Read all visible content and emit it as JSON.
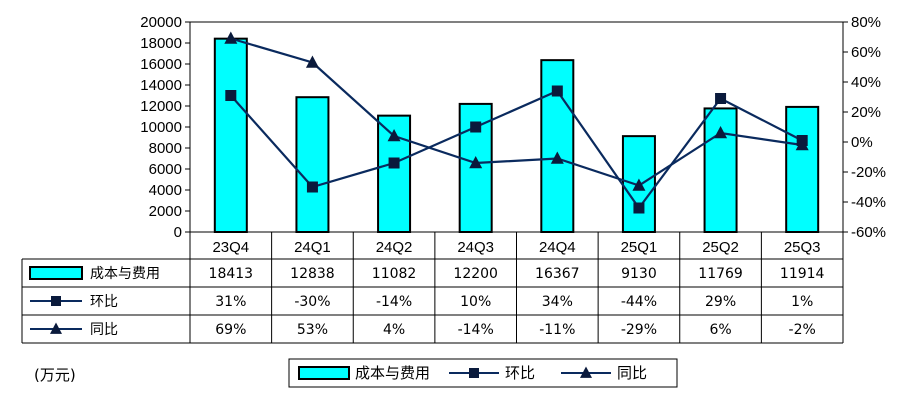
{
  "chart_data": {
    "type": "bar",
    "categories": [
      "23Q4",
      "24Q1",
      "24Q2",
      "24Q3",
      "24Q4",
      "25Q1",
      "25Q2",
      "25Q3"
    ],
    "y_left_ticks": [
      "20000",
      "18000",
      "16000",
      "14000",
      "12000",
      "10000",
      "8000",
      "6000",
      "4000",
      "2000",
      "0"
    ],
    "y_right_ticks": [
      "80%",
      "60%",
      "40%",
      "20%",
      "0%",
      "-20%",
      "-40%",
      "-60%"
    ],
    "ylim_left": [
      0,
      20000
    ],
    "ylim_right": [
      -60,
      80
    ],
    "series": [
      {
        "name": "成本与费用",
        "kind": "bar",
        "axis": "left",
        "values": [
          18413,
          12838,
          11082,
          12200,
          16367,
          9130,
          11769,
          11914
        ],
        "labels": [
          "18413",
          "12838",
          "11082",
          "12200",
          "16367",
          "9130",
          "11769",
          "11914"
        ]
      },
      {
        "name": "环比",
        "kind": "line-square",
        "axis": "right",
        "values": [
          31,
          -30,
          -14,
          10,
          34,
          -44,
          29,
          1
        ],
        "labels": [
          "31%",
          "-30%",
          "-14%",
          "10%",
          "34%",
          "-44%",
          "29%",
          "1%"
        ]
      },
      {
        "name": "同比",
        "kind": "line-triangle",
        "axis": "right",
        "values": [
          69,
          53,
          4,
          -14,
          -11,
          -29,
          6,
          -2
        ],
        "labels": [
          "69%",
          "53%",
          "4%",
          "-14%",
          "-11%",
          "-29%",
          "6%",
          "-2%"
        ]
      }
    ],
    "legend": {
      "position": "bottom",
      "entries": [
        "成本与费用",
        "环比",
        "同比"
      ]
    }
  },
  "unit_note": "(万元)",
  "colors": {
    "bar": "#00ffff",
    "line": "#0a2a5e",
    "marker": "#0a1a3c",
    "border": "#000000"
  }
}
